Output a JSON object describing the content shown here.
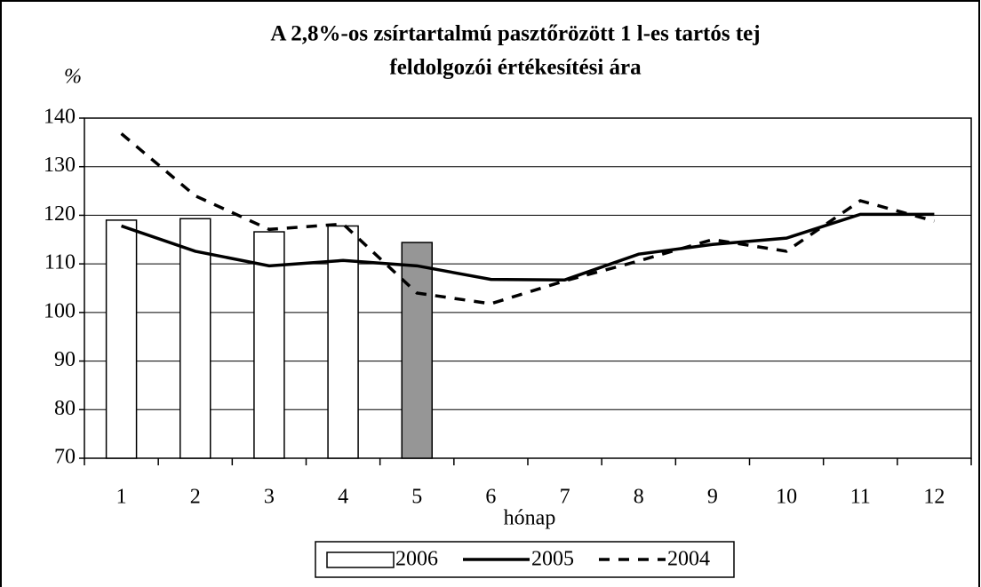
{
  "chart_data": {
    "type": "bar_line",
    "title": [
      "A 2,8%-os zsírtartalmú pasztőrözött 1 l-es tartós tej",
      "feldolgozói értékesítési ára"
    ],
    "y_label": "%",
    "x_label": "hónap",
    "categories": [
      "1",
      "2",
      "3",
      "4",
      "5",
      "6",
      "7",
      "8",
      "9",
      "10",
      "11",
      "12"
    ],
    "series": [
      {
        "name": "2006",
        "type": "bar",
        "color": "#ffffff",
        "colors": [
          "#ffffff",
          "#ffffff",
          "#ffffff",
          "#ffffff",
          "#969696",
          null,
          null,
          null,
          null,
          null,
          null,
          null
        ],
        "values": [
          119,
          119.3,
          116.6,
          117.8,
          114.4,
          null,
          null,
          null,
          null,
          null,
          null,
          null
        ]
      },
      {
        "name": "2005",
        "type": "line",
        "color": "#000000",
        "dash": false,
        "values": [
          117.8,
          112.6,
          109.6,
          110.7,
          109.6,
          106.8,
          106.7,
          112,
          114,
          115.3,
          120.2,
          120.2
        ]
      },
      {
        "name": "2004",
        "type": "line",
        "color": "#000000",
        "dash": true,
        "values": [
          136.8,
          124,
          117.1,
          118.2,
          104,
          101.8,
          106.5,
          110.6,
          115,
          112.6,
          123,
          118.8
        ]
      }
    ],
    "ylim": [
      70,
      140
    ],
    "yticks": [
      70,
      80,
      90,
      100,
      110,
      120,
      130,
      140
    ],
    "grid": true,
    "legend": "bottom"
  }
}
